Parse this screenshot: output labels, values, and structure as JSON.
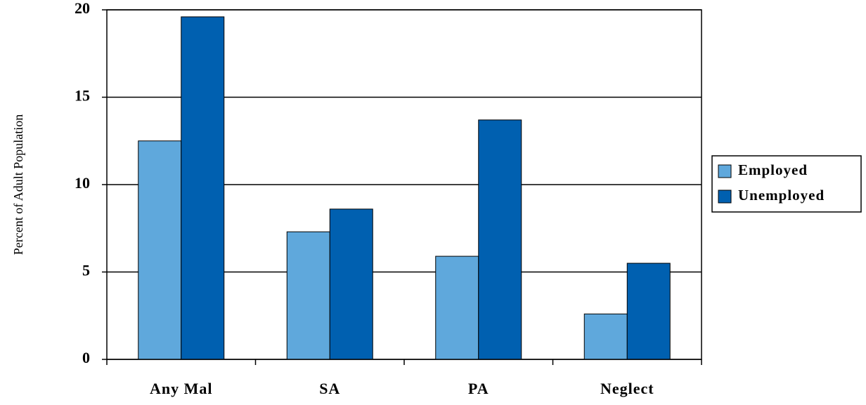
{
  "chart_data": {
    "type": "bar",
    "y_label": "Percent of Adult Population",
    "categories": [
      "Any Mal",
      "SA",
      "PA",
      "Neglect"
    ],
    "series": [
      {
        "name": "Employed",
        "color": "#5fa8dc",
        "values": [
          12.5,
          7.3,
          5.9,
          2.6
        ]
      },
      {
        "name": "Unemployed",
        "color": "#0060b0",
        "values": [
          19.6,
          8.6,
          13.7,
          5.5
        ]
      }
    ],
    "ylim": [
      0,
      20
    ],
    "yticks": [
      0,
      5,
      10,
      15,
      20
    ],
    "grid": true,
    "legend": "right"
  }
}
